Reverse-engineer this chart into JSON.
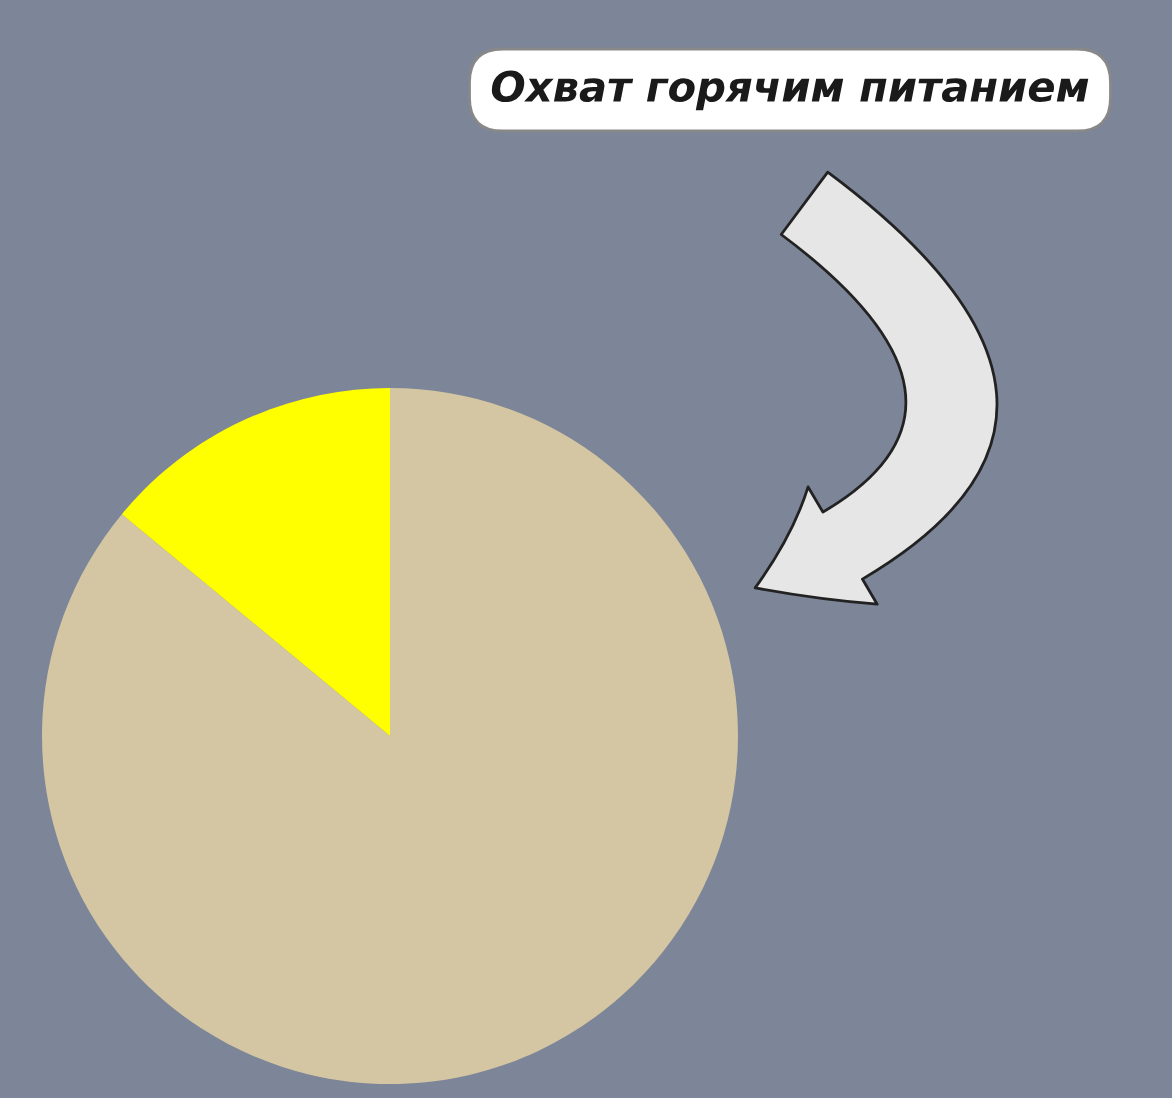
{
  "chart_data": {
    "type": "pie",
    "title": "Охват горячим питанием",
    "categories": [
      null,
      null
    ],
    "values": [
      86,
      14
    ],
    "colors": [
      "#d4c6a2",
      "#ffff00"
    ],
    "legend": false
  }
}
